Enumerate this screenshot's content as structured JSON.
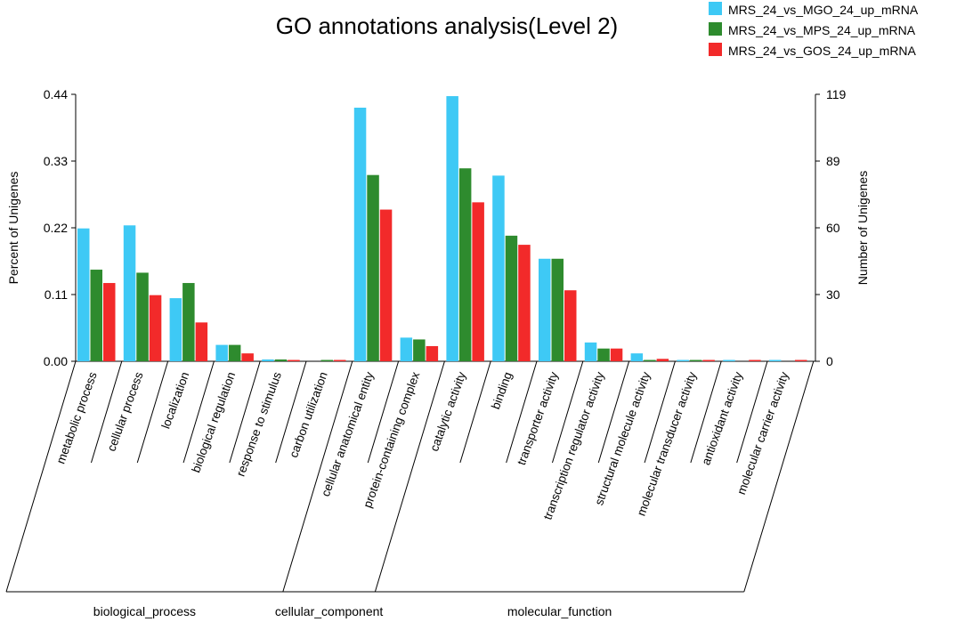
{
  "chart_data": {
    "type": "bar",
    "title": "GO annotations analysis(Level 2)",
    "ylabel_left": "Percent of Unigenes",
    "ylabel_right": "Number of Unigenes",
    "ylim_left": [
      0,
      0.44
    ],
    "ylim_right": [
      0,
      119
    ],
    "left_ticks": [
      "0.00",
      "0.11",
      "0.22",
      "0.33",
      "0.44"
    ],
    "right_ticks": [
      "0",
      "30",
      "60",
      "89",
      "119"
    ],
    "categories": [
      "metabolic process",
      "cellular process",
      "localization",
      "biological regulation",
      "response to stimulus",
      "carbon utilization",
      "cellular anatomical entity",
      "protein-containing complex",
      "catalytic activity",
      "binding",
      "transporter activity",
      "transcription regulator activity",
      "structural molecule activity",
      "molecular transducer activity",
      "antioxidant activity",
      "molecular carrier activity"
    ],
    "series": [
      {
        "name": "MRS_24_vs_MGO_24_up_mRNA",
        "color": "#3ec9f5",
        "values": [
          0.219,
          0.224,
          0.104,
          0.027,
          0.003,
          0.0,
          0.418,
          0.039,
          0.437,
          0.306,
          0.169,
          0.031,
          0.013,
          0.002,
          0.002,
          0.002
        ]
      },
      {
        "name": "MRS_24_vs_MPS_24_up_mRNA",
        "color": "#2e8b2e",
        "values": [
          0.151,
          0.146,
          0.129,
          0.027,
          0.003,
          0.002,
          0.307,
          0.036,
          0.318,
          0.207,
          0.169,
          0.021,
          0.002,
          0.002,
          0.0,
          0.0
        ]
      },
      {
        "name": "MRS_24_vs_GOS_24_up_mRNA",
        "color": "#f22a2a",
        "values": [
          0.129,
          0.109,
          0.064,
          0.013,
          0.001,
          0.002,
          0.25,
          0.025,
          0.262,
          0.192,
          0.117,
          0.021,
          0.004,
          0.002,
          0.002,
          0.002
        ]
      }
    ],
    "groups": [
      {
        "label": "biological_process",
        "start": 0,
        "end": 5
      },
      {
        "label": "cellular_component",
        "start": 6,
        "end": 7
      },
      {
        "label": "molecular_function",
        "start": 8,
        "end": 15
      }
    ]
  }
}
